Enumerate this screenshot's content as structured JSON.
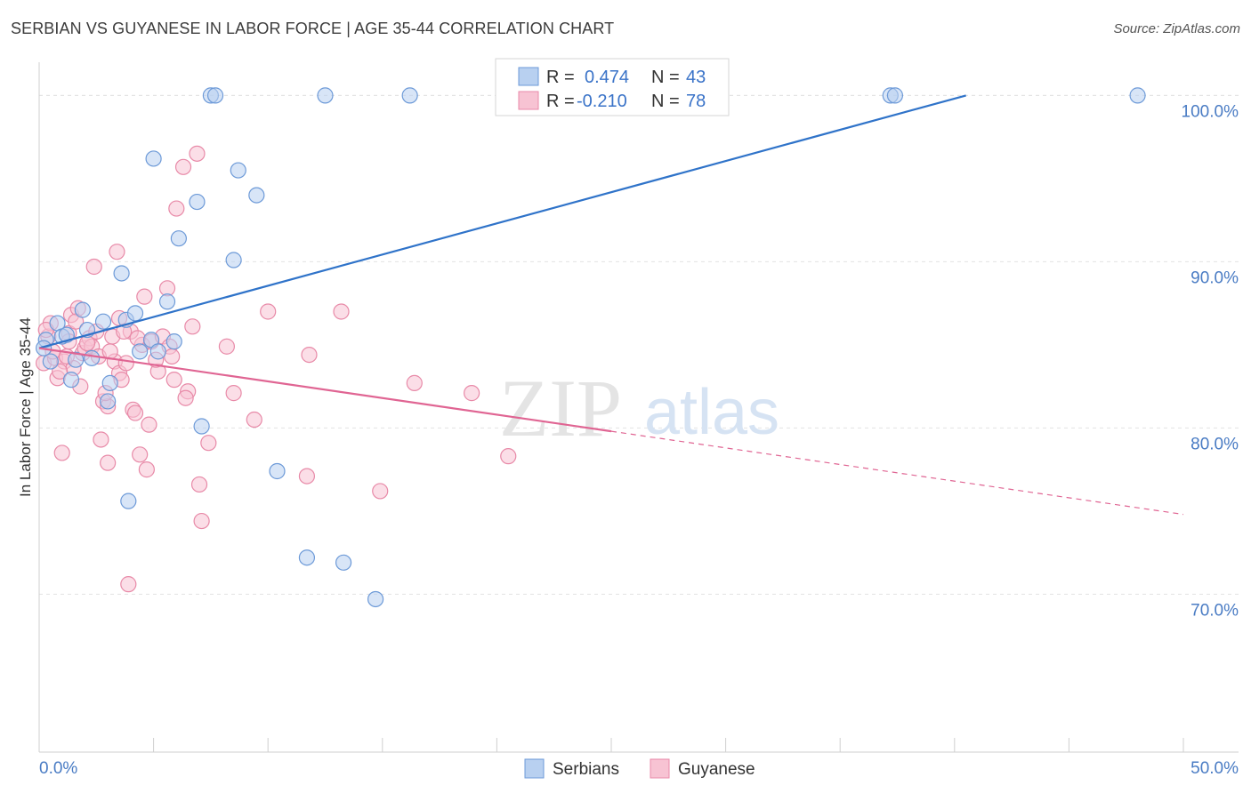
{
  "title": "SERBIAN VS GUYANESE IN LABOR FORCE | AGE 35-44 CORRELATION CHART",
  "source": "Source: ZipAtlas.com",
  "watermark": {
    "zip": "ZIP",
    "atlas": "atlas"
  },
  "colors": {
    "serbians_fill": "#b8d0f0",
    "serbians_stroke": "#6d9ad8",
    "serbians_line": "#2f73c9",
    "guyanese_fill": "#f7c3d3",
    "guyanese_stroke": "#e88aa8",
    "guyanese_line": "#e06593",
    "tick_label": "#4a7cc4"
  },
  "legend": {
    "rows": [
      {
        "r_label": "R =",
        "r_value": "0.474",
        "n_label": "N =",
        "n_value": "43"
      },
      {
        "r_label": "R =",
        "r_value": "-0.210",
        "n_label": "N =",
        "n_value": "78"
      }
    ]
  },
  "chart_data": {
    "type": "scatter",
    "title": "SERBIAN VS GUYANESE IN LABOR FORCE | AGE 35-44 CORRELATION CHART",
    "xlabel": "",
    "ylabel": "In Labor Force | Age 35-44",
    "x_unit": "%",
    "y_unit": "%",
    "xlim": [
      0,
      50
    ],
    "ylim": [
      60.5,
      102
    ],
    "x_tick_labels": [
      "0.0%",
      "50.0%"
    ],
    "y_ticks": [
      70,
      80,
      90,
      100
    ],
    "y_tick_labels": [
      "70.0%",
      "80.0%",
      "90.0%",
      "100.0%"
    ],
    "grid": true,
    "legend_position": "top-center",
    "series": [
      {
        "name": "Serbians",
        "r": 0.474,
        "n": 43,
        "trend": {
          "x": [
            0,
            40.5
          ],
          "y": [
            84.8,
            100
          ]
        },
        "points": [
          [
            0.3,
            85.3
          ],
          [
            0.5,
            84.0
          ],
          [
            0.8,
            86.3
          ],
          [
            1.0,
            85.5
          ],
          [
            1.2,
            85.6
          ],
          [
            1.4,
            82.9
          ],
          [
            1.6,
            84.1
          ],
          [
            1.9,
            87.1
          ],
          [
            2.1,
            85.9
          ],
          [
            2.3,
            84.2
          ],
          [
            2.8,
            86.4
          ],
          [
            3.0,
            81.6
          ],
          [
            3.1,
            82.7
          ],
          [
            3.6,
            89.3
          ],
          [
            3.8,
            86.5
          ],
          [
            3.9,
            75.6
          ],
          [
            4.2,
            86.9
          ],
          [
            4.4,
            84.6
          ],
          [
            4.9,
            85.3
          ],
          [
            5.0,
            96.2
          ],
          [
            5.2,
            84.6
          ],
          [
            5.6,
            87.6
          ],
          [
            5.9,
            85.2
          ],
          [
            6.1,
            91.4
          ],
          [
            6.9,
            93.6
          ],
          [
            7.1,
            80.1
          ],
          [
            7.5,
            100
          ],
          [
            7.7,
            100
          ],
          [
            8.5,
            90.1
          ],
          [
            8.7,
            95.5
          ],
          [
            9.5,
            94.0
          ],
          [
            10.4,
            77.4
          ],
          [
            11.7,
            72.2
          ],
          [
            12.5,
            100
          ],
          [
            13.3,
            71.9
          ],
          [
            14.7,
            69.7
          ],
          [
            16.2,
            100
          ],
          [
            20.7,
            100
          ],
          [
            26.5,
            100
          ],
          [
            37.2,
            100
          ],
          [
            37.4,
            100
          ],
          [
            48.0,
            100
          ],
          [
            0.2,
            84.8
          ]
        ]
      },
      {
        "name": "Guyanese",
        "r": -0.21,
        "n": 78,
        "trend": {
          "x": [
            0,
            25
          ],
          "y": [
            84.8,
            79.8
          ]
        },
        "trend_dashed": {
          "x": [
            25,
            50
          ],
          "y": [
            79.8,
            74.8
          ]
        },
        "points": [
          [
            0.2,
            83.9
          ],
          [
            0.4,
            85.5
          ],
          [
            0.5,
            86.3
          ],
          [
            0.7,
            84.2
          ],
          [
            0.8,
            83.0
          ],
          [
            1.0,
            78.5
          ],
          [
            1.1,
            84.0
          ],
          [
            1.3,
            85.7
          ],
          [
            1.4,
            86.8
          ],
          [
            1.5,
            83.6
          ],
          [
            1.7,
            87.2
          ],
          [
            1.8,
            82.5
          ],
          [
            1.9,
            84.5
          ],
          [
            2.0,
            84.8
          ],
          [
            2.2,
            85.4
          ],
          [
            2.3,
            84.9
          ],
          [
            2.4,
            89.7
          ],
          [
            2.6,
            84.3
          ],
          [
            2.7,
            79.3
          ],
          [
            2.8,
            81.6
          ],
          [
            3.0,
            77.9
          ],
          [
            3.0,
            81.3
          ],
          [
            3.2,
            85.5
          ],
          [
            3.3,
            84.0
          ],
          [
            3.4,
            90.6
          ],
          [
            3.5,
            86.6
          ],
          [
            3.5,
            83.3
          ],
          [
            3.6,
            82.9
          ],
          [
            3.9,
            70.6
          ],
          [
            4.0,
            85.8
          ],
          [
            4.1,
            81.1
          ],
          [
            4.2,
            80.9
          ],
          [
            4.4,
            78.4
          ],
          [
            4.5,
            85.0
          ],
          [
            4.6,
            87.9
          ],
          [
            4.7,
            77.5
          ],
          [
            4.9,
            85.2
          ],
          [
            5.2,
            83.4
          ],
          [
            5.4,
            85.5
          ],
          [
            5.6,
            88.4
          ],
          [
            5.7,
            84.9
          ],
          [
            5.8,
            84.3
          ],
          [
            5.9,
            82.9
          ],
          [
            6.0,
            93.2
          ],
          [
            6.3,
            95.7
          ],
          [
            6.5,
            82.2
          ],
          [
            6.7,
            86.1
          ],
          [
            6.9,
            96.5
          ],
          [
            7.0,
            76.6
          ],
          [
            7.1,
            74.4
          ],
          [
            7.4,
            79.1
          ],
          [
            8.2,
            84.9
          ],
          [
            8.5,
            82.1
          ],
          [
            9.4,
            80.5
          ],
          [
            10.0,
            87.0
          ],
          [
            11.7,
            77.1
          ],
          [
            11.8,
            84.4
          ],
          [
            13.2,
            87.0
          ],
          [
            14.9,
            76.2
          ],
          [
            16.4,
            82.7
          ],
          [
            18.9,
            82.1
          ],
          [
            20.5,
            78.3
          ],
          [
            0.3,
            85.9
          ],
          [
            0.6,
            84.6
          ],
          [
            1.2,
            84.3
          ],
          [
            1.6,
            86.4
          ],
          [
            2.1,
            85.1
          ],
          [
            2.5,
            85.8
          ],
          [
            3.1,
            84.6
          ],
          [
            3.8,
            83.9
          ],
          [
            4.3,
            85.4
          ],
          [
            5.1,
            84.1
          ],
          [
            0.9,
            83.4
          ],
          [
            1.3,
            85.2
          ],
          [
            2.9,
            82.1
          ],
          [
            3.7,
            85.8
          ],
          [
            4.8,
            80.2
          ],
          [
            6.4,
            81.8
          ]
        ]
      }
    ]
  },
  "bottom_legend": [
    "Serbians",
    "Guyanese"
  ]
}
